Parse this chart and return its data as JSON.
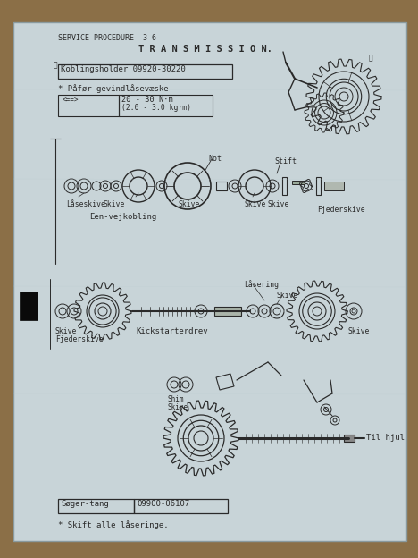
{
  "bg_color": "#8B6F47",
  "paper_bg": "#c8d4d8",
  "paper_edge": "#aab8bc",
  "ink_color": "#2a2a2a",
  "dark_ink": "#1a1a1a",
  "header": "SERVICE-PROCEDURE  3-6",
  "title": "T R A N S M I S S I O N.",
  "box1_text": "Koblingsholder 09920-30220",
  "bullet1": "* Påfør gevindlåsevæske",
  "torque_sym": "<====>",
  "torque_val": "20 - 30 N·m\n(2.0 - 3.0 kg·m)",
  "label_not": "Not",
  "label_stift": "Stift",
  "label_laaseskive": "Låseskive",
  "label_skive": "Skive",
  "label_fjederskive": "Fjederskive",
  "label_een_vejkobling": "Een-vejkobling",
  "label_laasering": "Låsering",
  "label_skive_top": "Skive",
  "label_skive_r": "Skive",
  "label_skive_fje": "Skive",
  "label_fjederskive2": "Fjederskive",
  "label_kickstart": "Kickstarterdrev",
  "label_shim": "Shim",
  "label_skive5": "Skive",
  "label_til_hjul": "Til hjul",
  "box2_left": "Søger-tang",
  "box2_right": "09900-06107",
  "footer": "* Skift alle låseringe."
}
